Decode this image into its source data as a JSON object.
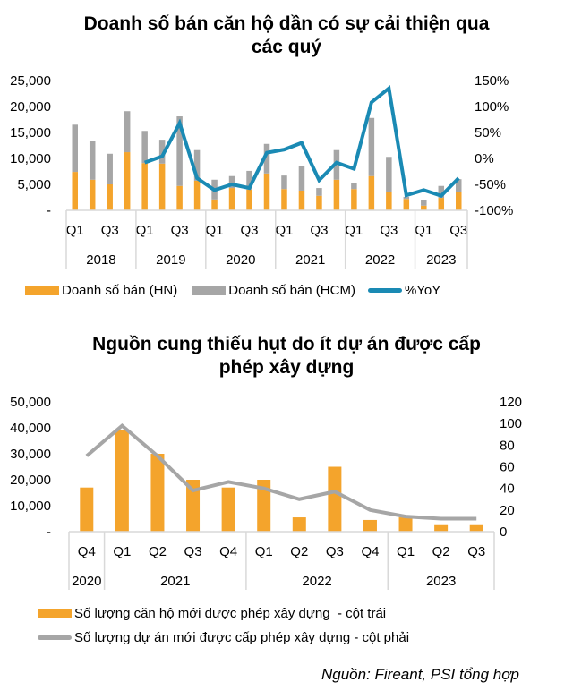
{
  "colors": {
    "hn": "#F4A42C",
    "hcm": "#A6A6A6",
    "yoy": "#1A8AB4",
    "projects": "#A6A6A6",
    "axis": "#D9D9D9"
  },
  "chart_data": [
    {
      "type": "bar",
      "stacked": true,
      "title": "Doanh số bán căn hộ dần có sự cải thiện qua các quý",
      "title_lines": [
        "Doanh số bán căn hộ dần có sự cải thiện qua",
        "các quý"
      ],
      "categories": [
        "2018Q1",
        "2018Q2",
        "2018Q3",
        "2018Q4",
        "2019Q1",
        "2019Q2",
        "2019Q3",
        "2019Q4",
        "2020Q1",
        "2020Q2",
        "2020Q3",
        "2020Q4",
        "2021Q1",
        "2021Q2",
        "2021Q3",
        "2021Q4",
        "2022Q1",
        "2022Q2",
        "2022Q3",
        "2022Q4",
        "2023Q1",
        "2023Q2",
        "2023Q3"
      ],
      "quarter_labels": [
        "Q1",
        "",
        "Q3",
        "",
        "Q1",
        "",
        "Q3",
        "",
        "Q1",
        "",
        "Q3",
        "",
        "Q1",
        "",
        "Q3",
        "",
        "Q1",
        "",
        "Q3",
        "",
        "Q1",
        "",
        "Q3"
      ],
      "year_groups": [
        {
          "label": "2018",
          "count": 4
        },
        {
          "label": "2019",
          "count": 4
        },
        {
          "label": "2020",
          "count": 4
        },
        {
          "label": "2021",
          "count": 4
        },
        {
          "label": "2022",
          "count": 4
        },
        {
          "label": "2023",
          "count": 3
        }
      ],
      "series": [
        {
          "name": "Doanh số bán (HN)",
          "kind": "bar",
          "axis": "left",
          "values": [
            7400,
            5900,
            5000,
            11200,
            9100,
            9000,
            4700,
            5700,
            2100,
            4300,
            4000,
            7100,
            4100,
            3800,
            2800,
            5900,
            4100,
            6600,
            3600,
            2200,
            900,
            2400,
            3600
          ]
        },
        {
          "name": "Doanh số bán (HCM)",
          "kind": "bar",
          "axis": "left",
          "values": [
            9100,
            7500,
            5900,
            7900,
            6200,
            4600,
            13400,
            5900,
            3800,
            2300,
            3600,
            5700,
            2600,
            4800,
            1500,
            5700,
            1200,
            11200,
            6700,
            400,
            1000,
            2300,
            2400
          ]
        },
        {
          "name": "%YoY",
          "kind": "line",
          "axis": "right",
          "values": [
            null,
            null,
            null,
            null,
            -8,
            4,
            68,
            -38,
            -61,
            -50,
            -57,
            11,
            17,
            30,
            -42,
            -8,
            -20,
            108,
            135,
            -71,
            -61,
            -72,
            -38
          ]
        }
      ],
      "left_axis": {
        "ylim": [
          0,
          25000
        ],
        "ticks": [
          "-",
          "5,000",
          "10,000",
          "15,000",
          "20,000",
          "25,000"
        ],
        "tick_values": [
          0,
          5000,
          10000,
          15000,
          20000,
          25000
        ]
      },
      "right_axis": {
        "ylim": [
          -100,
          150
        ],
        "ticks": [
          "-100%",
          "-50%",
          "0%",
          "50%",
          "100%",
          "150%"
        ],
        "tick_values": [
          -100,
          -50,
          0,
          50,
          100,
          150
        ]
      },
      "legend": [
        "Doanh số bán (HN)",
        "Doanh số bán (HCM)",
        "%YoY"
      ],
      "legend_position": "bottom",
      "grid": false
    },
    {
      "type": "bar",
      "title": "Nguồn cung thiếu hụt do ít dự án được cấp phép xây dựng",
      "title_lines": [
        "Nguồn cung thiếu hụt do ít dự án được cấp",
        "phép xây dựng"
      ],
      "categories": [
        "2020Q4",
        "2021Q1",
        "2021Q2",
        "2021Q3",
        "2021Q4",
        "2022Q1",
        "2022Q2",
        "2022Q3",
        "2022Q4",
        "2023Q1",
        "2023Q2",
        "2023Q3"
      ],
      "quarter_labels": [
        "Q4",
        "Q1",
        "Q2",
        "Q3",
        "Q4",
        "Q1",
        "Q2",
        "Q3",
        "Q4",
        "Q1",
        "Q2",
        "Q3"
      ],
      "year_groups": [
        {
          "label": "2020",
          "count": 1
        },
        {
          "label": "2021",
          "count": 4
        },
        {
          "label": "2022",
          "count": 4
        },
        {
          "label": "2023",
          "count": 3
        }
      ],
      "series": [
        {
          "name": "Số lượng căn hộ mới được phép xây dựng  - cột trái",
          "kind": "bar",
          "axis": "left",
          "values": [
            17000,
            39000,
            30000,
            20000,
            17000,
            20000,
            5500,
            25000,
            4500,
            5500,
            2500,
            2500
          ]
        },
        {
          "name": "Số lượng dự án mới được cấp phép xây dựng - cột phải",
          "kind": "line",
          "axis": "right",
          "values": [
            70,
            98,
            70,
            38,
            46,
            40,
            30,
            37,
            20,
            14,
            12,
            12
          ]
        }
      ],
      "left_axis": {
        "ylim": [
          0,
          50000
        ],
        "ticks": [
          "-",
          "10,000",
          "20,000",
          "30,000",
          "40,000",
          "50,000"
        ],
        "tick_values": [
          0,
          10000,
          20000,
          30000,
          40000,
          50000
        ]
      },
      "right_axis": {
        "ylim": [
          0,
          120
        ],
        "ticks": [
          "0",
          "20",
          "40",
          "60",
          "80",
          "100",
          "120"
        ],
        "tick_values": [
          0,
          20,
          40,
          60,
          80,
          100,
          120
        ]
      },
      "legend": [
        "Số lượng căn hộ mới được phép xây dựng  - cột trái",
        "Số lượng dự án mới được cấp phép xây dựng - cột phải"
      ],
      "legend_position": "bottom",
      "grid": false
    }
  ],
  "source": "Nguồn: Fireant, PSI tổng hợp"
}
